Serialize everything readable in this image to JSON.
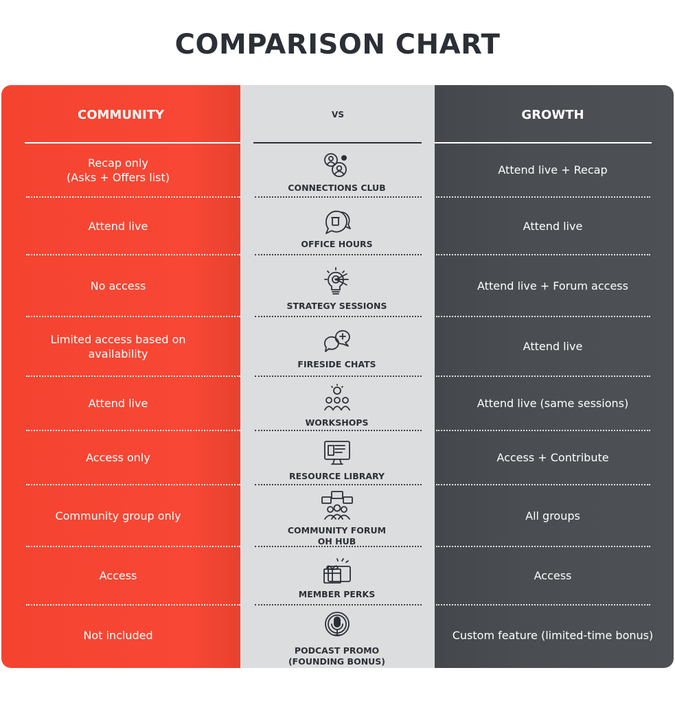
{
  "title": "COMPARISON CHART",
  "headers": {
    "left": "COMMUNITY",
    "middle": "VS",
    "right": "GROWTH"
  },
  "colors": {
    "community": "#f84735",
    "middle": "#dcdddf",
    "growth": "#4a4e52",
    "text_dark": "#2b2f36"
  },
  "rows": [
    {
      "feature": "CONNECTIONS CLUB",
      "icon": "people-network-icon",
      "community": "Recap only\n(Asks + Offers list)",
      "growth": "Attend live + Recap"
    },
    {
      "feature": "OFFICE HOURS",
      "icon": "coffee-chat-icon",
      "community": "Attend live",
      "growth": "Attend live"
    },
    {
      "feature": "STRATEGY SESSIONS",
      "icon": "lightbulb-target-icon",
      "community": "No access",
      "growth": "Attend live + Forum access"
    },
    {
      "feature": "FIRESIDE CHATS",
      "icon": "chat-bubbles-icon",
      "community": "Limited access based on\navailability",
      "growth": "Attend live"
    },
    {
      "feature": "WORKSHOPS",
      "icon": "team-idea-icon",
      "community": "Attend live",
      "growth": "Attend live (same sessions)"
    },
    {
      "feature": "RESOURCE LIBRARY",
      "icon": "monitor-book-icon",
      "community": "Access only",
      "growth": "Access + Contribute"
    },
    {
      "feature": "COMMUNITY FORUM\nOH HUB",
      "icon": "forum-group-icon",
      "community": "Community group only",
      "growth": "All groups"
    },
    {
      "feature": "MEMBER PERKS",
      "icon": "gift-card-icon",
      "community": "Access",
      "growth": "Access"
    },
    {
      "feature": "PODCAST PROMO\n(FOUNDING BONUS)",
      "icon": "microphone-icon",
      "community": "Not included",
      "growth": "Custom feature (limited-time bonus)"
    }
  ]
}
